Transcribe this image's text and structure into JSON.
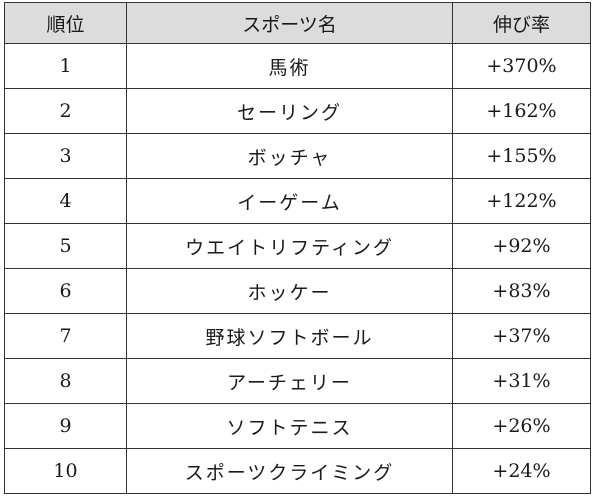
{
  "table": {
    "headers": {
      "rank": "順位",
      "sport": "スポーツ名",
      "growth": "伸び率"
    },
    "rows": [
      {
        "rank": "1",
        "sport": "馬術",
        "growth": "+370%"
      },
      {
        "rank": "2",
        "sport": "セーリング",
        "growth": "+162%"
      },
      {
        "rank": "3",
        "sport": "ボッチャ",
        "growth": "+155%"
      },
      {
        "rank": "4",
        "sport": "イーゲーム",
        "growth": "+122%"
      },
      {
        "rank": "5",
        "sport": "ウエイトリフティング",
        "growth": "+92%"
      },
      {
        "rank": "6",
        "sport": "ホッケー",
        "growth": "+83%"
      },
      {
        "rank": "7",
        "sport": "野球ソフトボール",
        "growth": "+37%"
      },
      {
        "rank": "8",
        "sport": "アーチェリー",
        "growth": "+31%"
      },
      {
        "rank": "9",
        "sport": "ソフトテニス",
        "growth": "+26%"
      },
      {
        "rank": "10",
        "sport": "スポーツクライミング",
        "growth": "+24%"
      }
    ]
  }
}
